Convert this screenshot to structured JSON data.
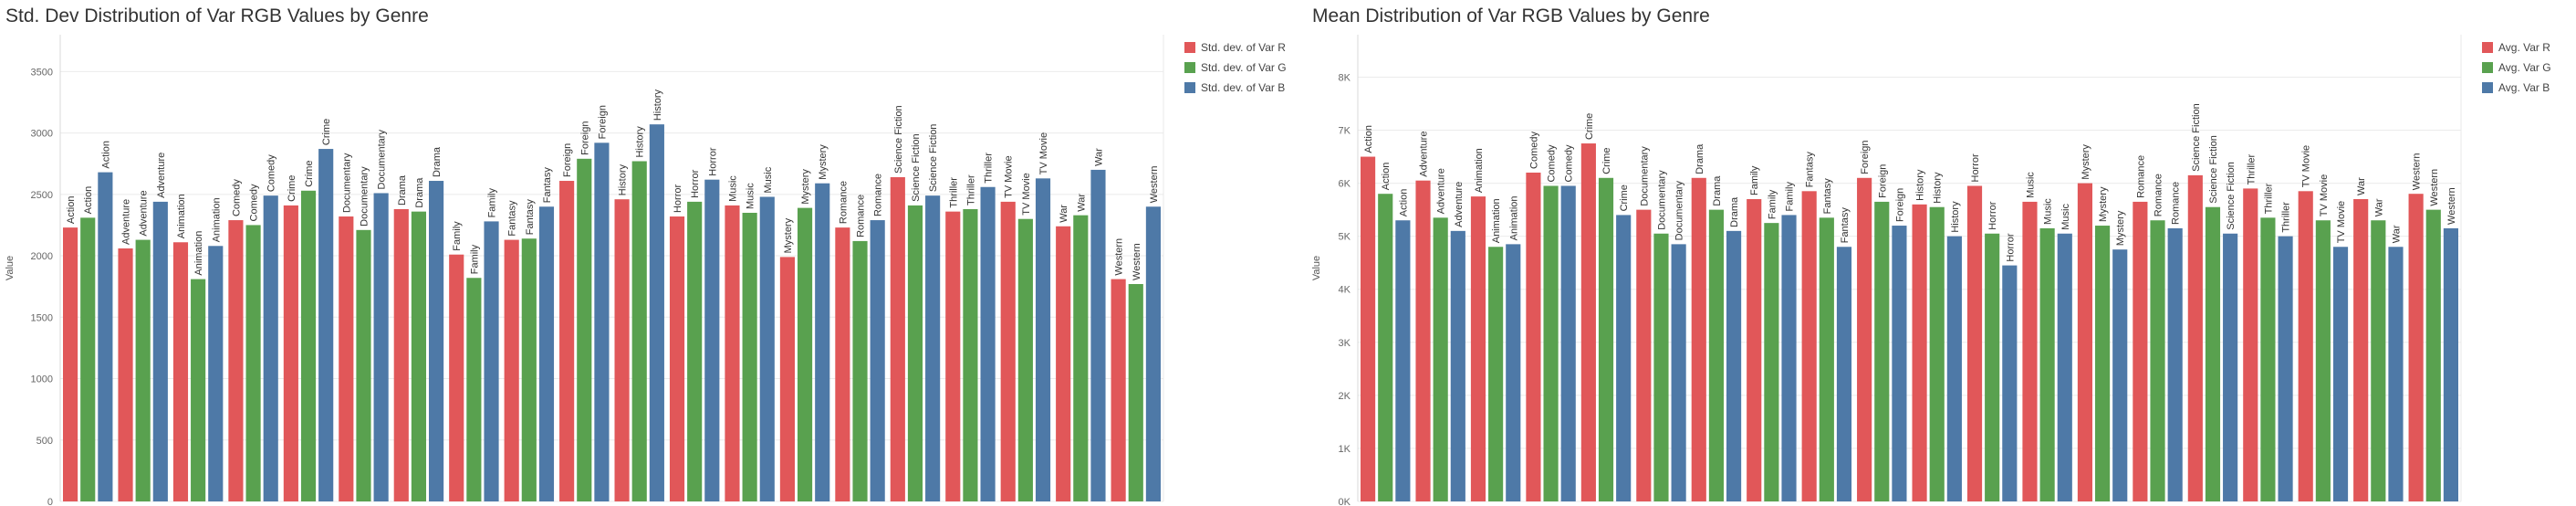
{
  "charts_meta": {
    "colors": [
      "#e15759",
      "#59a14f",
      "#4e79a7"
    ]
  },
  "chart_data": [
    {
      "type": "bar",
      "title": "Std. Dev Distribution of Var RGB Values by Genre",
      "xlabel": "",
      "ylabel": "Value",
      "ylim": [
        0,
        3800
      ],
      "yticks": [
        0,
        500,
        1000,
        1500,
        2000,
        2500,
        3000,
        3500
      ],
      "ytick_labels": [
        "0",
        "500",
        "1000",
        "1500",
        "2000",
        "2500",
        "3000",
        "3500"
      ],
      "grid": true,
      "legend_position": "right",
      "categories": [
        "Action",
        "Adventure",
        "Animation",
        "Comedy",
        "Crime",
        "Documentary",
        "Drama",
        "Family",
        "Fantasy",
        "Foreign",
        "History",
        "Horror",
        "Music",
        "Mystery",
        "Romance",
        "Science Fiction",
        "Thriller",
        "TV Movie",
        "War",
        "Western"
      ],
      "series": [
        {
          "name": "Std. dev. of Var R",
          "values": [
            2230,
            2060,
            2110,
            2290,
            2410,
            2320,
            2380,
            2010,
            2130,
            2610,
            2460,
            2320,
            2410,
            1990,
            2230,
            2640,
            2360,
            2440,
            2240,
            1810
          ]
        },
        {
          "name": "Std. dev. of Var G",
          "values": [
            2310,
            2130,
            1810,
            2250,
            2530,
            2210,
            2360,
            1820,
            2140,
            2790,
            2770,
            2440,
            2350,
            2390,
            2120,
            2410,
            2380,
            2300,
            2330,
            1770
          ]
        },
        {
          "name": "Std. dev. of Var B",
          "values": [
            2680,
            2440,
            2080,
            2490,
            2870,
            2510,
            2610,
            2280,
            2400,
            2920,
            3070,
            2620,
            2480,
            2590,
            2290,
            2490,
            2560,
            2630,
            2700,
            2400
          ]
        }
      ]
    },
    {
      "type": "bar",
      "title": "Mean Distribution of Var RGB Values by Genre",
      "xlabel": "",
      "ylabel": "Value",
      "ylim": [
        0,
        8800
      ],
      "yticks": [
        0,
        1000,
        2000,
        3000,
        4000,
        5000,
        6000,
        7000,
        8000
      ],
      "ytick_labels": [
        "0K",
        "1K",
        "2K",
        "3K",
        "4K",
        "5K",
        "6K",
        "7K",
        "8K"
      ],
      "grid": true,
      "legend_position": "right",
      "categories": [
        "Action",
        "Adventure",
        "Animation",
        "Comedy",
        "Crime",
        "Documentary",
        "Drama",
        "Family",
        "Fantasy",
        "Foreign",
        "History",
        "Horror",
        "Music",
        "Mystery",
        "Romance",
        "Science Fiction",
        "Thriller",
        "TV Movie",
        "War",
        "Western"
      ],
      "series": [
        {
          "name": "Avg. Var R",
          "values": [
            6500,
            6050,
            5750,
            6200,
            6750,
            5500,
            6100,
            5700,
            5850,
            6100,
            5600,
            5950,
            5650,
            6000,
            5650,
            6150,
            5900,
            5850,
            5700,
            5800
          ]
        },
        {
          "name": "Avg. Var G",
          "values": [
            5800,
            5350,
            4800,
            5950,
            6100,
            5050,
            5500,
            5250,
            5350,
            5650,
            5550,
            5050,
            5150,
            5200,
            5300,
            5550,
            5350,
            5300,
            5300,
            5500
          ]
        },
        {
          "name": "Avg. Var B",
          "values": [
            5300,
            5100,
            4850,
            5950,
            5400,
            4850,
            5100,
            5400,
            4800,
            5200,
            5000,
            4450,
            5050,
            4750,
            5150,
            5050,
            5000,
            4800,
            4800,
            5150
          ]
        }
      ]
    }
  ]
}
